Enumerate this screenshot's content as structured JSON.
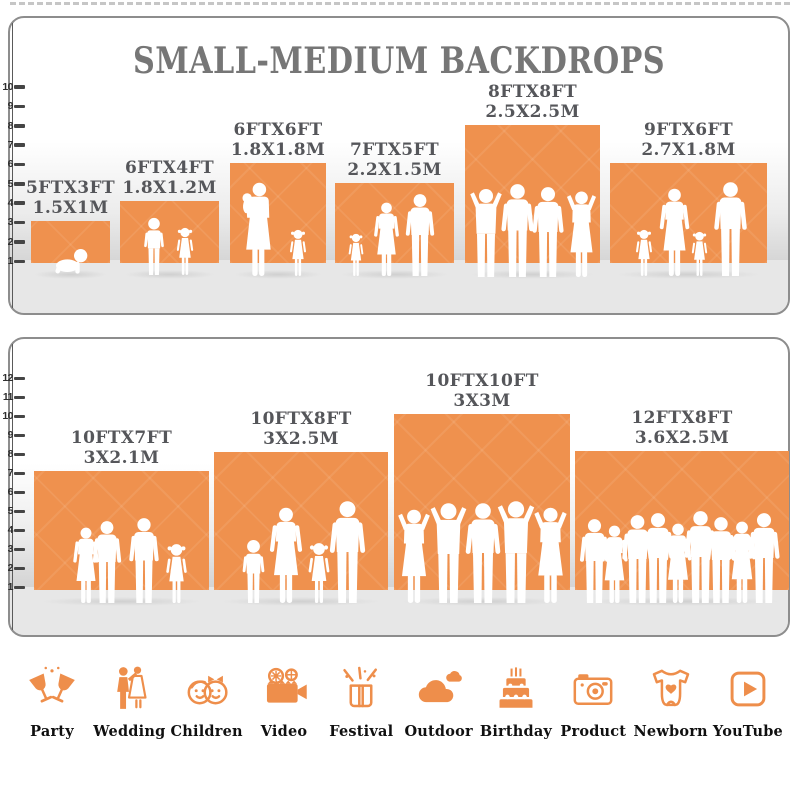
{
  "title": "SMALL-MEDIUM BACKDROPS",
  "panels": [
    {
      "name": "small-medium backdrops (top row)",
      "ruler_unit": "FT",
      "ruler_numbers": [
        "1",
        "2",
        "3",
        "4",
        "5",
        "6",
        "7",
        "8",
        "9",
        "10"
      ],
      "backdrops": [
        {
          "ft": "5FTX3FT",
          "m": "1.5X1M",
          "width_ft": 5,
          "height_ft": 3,
          "people": "crawling baby"
        },
        {
          "ft": "6FTX4FT",
          "m": "1.8X1.2M",
          "width_ft": 6,
          "height_ft": 4,
          "people": "two children"
        },
        {
          "ft": "6FTX6FT",
          "m": "1.8X1.8M",
          "width_ft": 6,
          "height_ft": 6,
          "people": "mother holding baby with girl"
        },
        {
          "ft": "7FTX5FT",
          "m": "2.2X1.5M",
          "width_ft": 7,
          "height_ft": 5,
          "people": "child, woman and man"
        },
        {
          "ft": "8FTX8FT",
          "m": "2.5X2.5M",
          "width_ft": 8,
          "height_ft": 8,
          "people": "four posing adults"
        },
        {
          "ft": "9FTX6FT",
          "m": "2.7X1.8M",
          "width_ft": 9,
          "height_ft": 6,
          "people": "family of four holding hands"
        }
      ]
    },
    {
      "name": "small-medium backdrops (bottom row)",
      "ruler_unit": "FT",
      "ruler_numbers": [
        "1",
        "2",
        "3",
        "4",
        "5",
        "6",
        "7",
        "8",
        "9",
        "10",
        "11",
        "12"
      ],
      "backdrops": [
        {
          "ft": "10FTX7FT",
          "m": "3X2.1M",
          "width_ft": 10,
          "height_ft": 7,
          "people": "couple, man and girl"
        },
        {
          "ft": "10FTX8FT",
          "m": "3X2.5M",
          "width_ft": 10,
          "height_ft": 8,
          "people": "family of four"
        },
        {
          "ft": "10FTX10FT",
          "m": "3X3M",
          "width_ft": 10,
          "height_ft": 10,
          "people": "five posing adults"
        },
        {
          "ft": "12FTX8FT",
          "m": "3.6X2.5M",
          "width_ft": 12,
          "height_ft": 8,
          "people": "crowd of nine"
        }
      ]
    }
  ],
  "categories": [
    {
      "label": "Party",
      "icon": "party-glasses-icon"
    },
    {
      "label": "Wedding",
      "icon": "wedding-couple-icon"
    },
    {
      "label": "Children",
      "icon": "children-faces-icon"
    },
    {
      "label": "Video",
      "icon": "video-camera-icon"
    },
    {
      "label": "Festival",
      "icon": "festival-gift-icon"
    },
    {
      "label": "Outdoor",
      "icon": "outdoor-clouds-icon"
    },
    {
      "label": "Birthday",
      "icon": "birthday-cake-icon"
    },
    {
      "label": "Product",
      "icon": "product-camera-icon"
    },
    {
      "label": "Newborn",
      "icon": "newborn-onesie-icon"
    },
    {
      "label": "YouTube",
      "icon": "youtube-play-icon"
    }
  ],
  "colors": {
    "backdrop_orange": "#EF914E",
    "icon_orange": "#EE8E4B",
    "title_gray": "#767676",
    "label_gray": "#55565A",
    "ground_gray": "#E7E7E7",
    "silhouette_white": "#FFFFFF"
  }
}
